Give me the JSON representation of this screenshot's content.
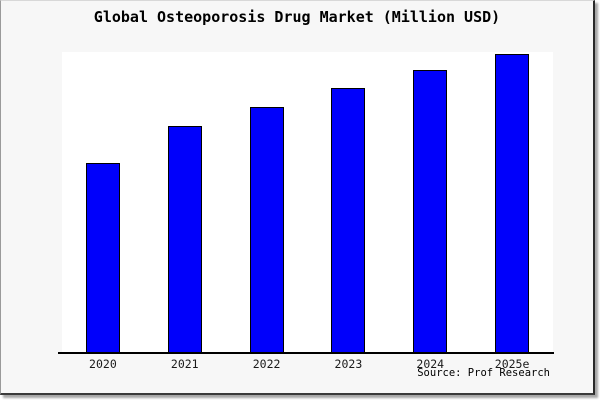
{
  "figure": {
    "title": "Global Osteoporosis Drug Market (Million USD)",
    "source": "Source: Prof Research"
  },
  "chart_data": {
    "type": "bar",
    "title": "Global Osteoporosis Drug Market (Million USD)",
    "categories": [
      "2020",
      "2021",
      "2022",
      "2023",
      "2024",
      "2025e"
    ],
    "values": [
      189,
      226,
      245,
      264,
      282,
      298
    ],
    "values_note": "no y-axis scale shown in source image; values are relative bar heights (pixels), max bar = 298",
    "xlabel": "",
    "ylabel": "",
    "ylim": [
      0,
      300
    ],
    "grid": false,
    "legend_visible": false,
    "y_axis_labels_visible": false,
    "bar_color": "#0000fb",
    "bar_edge_color": "#000000",
    "axis_color": "#000000",
    "plot_bg": "#ffffff",
    "figure_bg": "#f7f7f7",
    "source": "Source: Prof Research"
  }
}
